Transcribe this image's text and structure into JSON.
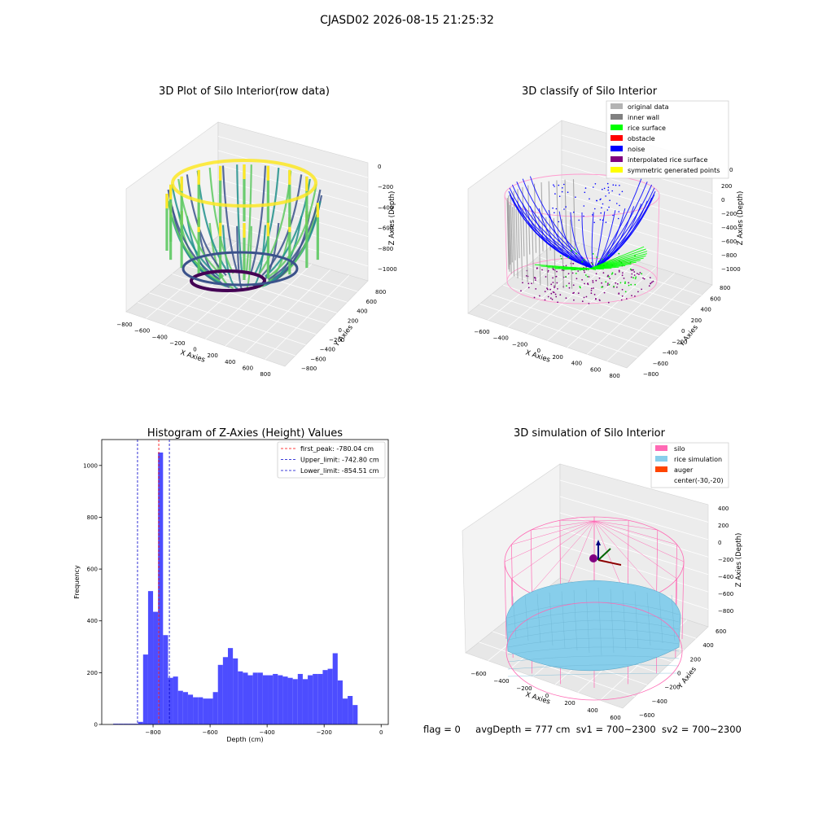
{
  "figure": {
    "title": "CJASD02 2026-08-15 21:25:32",
    "status_line": {
      "flag": "flag = 0",
      "avg_depth": "avgDepth = 777 cm",
      "sv1": "sv1 = 700~2300",
      "sv2": "sv2 = 700~2300"
    }
  },
  "panels": {
    "raw": {
      "title": "3D Plot of Silo Interior(row data)",
      "xlabel": "X Axies",
      "ylabel": "Y Axies",
      "zlabel": "Z Axies (Depth)",
      "xticks": [
        "−800",
        "−600",
        "−400",
        "−200",
        "0",
        "200",
        "400",
        "600",
        "800"
      ],
      "yticks": [
        "−800",
        "−600",
        "−400",
        "−200",
        "0",
        "200",
        "400",
        "600",
        "800"
      ],
      "zticks": [
        "0",
        "−200",
        "−400",
        "−600",
        "−800",
        "−1000"
      ],
      "colormap": [
        "#440154",
        "#3b528b",
        "#21918c",
        "#5ec962",
        "#fde725"
      ]
    },
    "classify": {
      "title": "3D classify of Silo Interior",
      "xlabel": "X Axies",
      "ylabel": "Y Axies",
      "zlabel": "Z Axies (Depth)",
      "xticks": [
        "−600",
        "−400",
        "−200",
        "0",
        "200",
        "400",
        "600",
        "800"
      ],
      "yticks": [
        "−800",
        "−600",
        "−400",
        "−200",
        "0",
        "200",
        "400",
        "600",
        "800"
      ],
      "zticks": [
        "200",
        "0",
        "−200",
        "−400",
        "−600",
        "−800",
        "−1000"
      ],
      "legend": [
        {
          "label": "original data",
          "color": "#b3b3b3"
        },
        {
          "label": "inner wall",
          "color": "#808080"
        },
        {
          "label": "rice surface",
          "color": "#00ff00"
        },
        {
          "label": "obstacle",
          "color": "#ff0000"
        },
        {
          "label": "noise",
          "color": "#0000ff"
        },
        {
          "label": "interpolated rice surface",
          "color": "#800080"
        },
        {
          "label": "symmetric generated points",
          "color": "#ffff00"
        }
      ],
      "partial_tick": "0"
    },
    "simulation": {
      "title": "3D simulation of Silo Interior",
      "xlabel": "X Axies",
      "ylabel": "Y Axies",
      "zlabel": "Z Axies (Depth)",
      "xticks": [
        "−600",
        "−400",
        "−200",
        "0",
        "200",
        "400",
        "600"
      ],
      "yticks": [
        "−600",
        "−400",
        "−200",
        "0",
        "200",
        "400",
        "600"
      ],
      "zticks": [
        "400",
        "200",
        "0",
        "−200",
        "−400",
        "−600",
        "−800"
      ],
      "legend": [
        {
          "label": "silo",
          "color": "#ff69b4"
        },
        {
          "label": "rice simulation",
          "color": "#87ceeb"
        },
        {
          "label": "auger",
          "color": "#ff4500"
        },
        {
          "label": "center(-30,-20)",
          "color": "none"
        }
      ]
    }
  },
  "chart_data": [
    {
      "type": "histogram",
      "title": "Histogram of Z-Axies (Height) Values",
      "xlabel": "Depth (cm)",
      "ylabel": "Frequency",
      "xlim": [
        -980,
        25
      ],
      "ylim": [
        0,
        1100
      ],
      "xticks": [
        -800,
        -600,
        -400,
        -200,
        0
      ],
      "xtick_labels": [
        "−800",
        "−600",
        "−400",
        "−200",
        "0"
      ],
      "yticks": [
        0,
        200,
        400,
        600,
        800,
        1000
      ],
      "bar_color": "#4d4dff",
      "bin_width": 17.5,
      "bin_starts": [
        -940,
        -922.5,
        -905,
        -887.5,
        -870,
        -852.5,
        -835,
        -817.5,
        -800,
        -782.5,
        -765,
        -747.5,
        -730,
        -712.5,
        -695,
        -677.5,
        -660,
        -642.5,
        -625,
        -607.5,
        -590,
        -572.5,
        -555,
        -537.5,
        -520,
        -502.5,
        -485,
        -467.5,
        -450,
        -432.5,
        -415,
        -397.5,
        -380,
        -362.5,
        -345,
        -327.5,
        -310,
        -292.5,
        -275,
        -257.5,
        -240,
        -222.5,
        -205,
        -187.5,
        -170,
        -152.5,
        -135,
        -117.5,
        -100,
        -82.5,
        -65,
        -47.5,
        -30,
        -12.5
      ],
      "counts": [
        3,
        3,
        3,
        3,
        3,
        10,
        270,
        515,
        435,
        1050,
        345,
        180,
        185,
        130,
        125,
        115,
        105,
        105,
        100,
        100,
        125,
        230,
        260,
        295,
        255,
        205,
        200,
        190,
        200,
        200,
        190,
        190,
        195,
        190,
        185,
        180,
        175,
        195,
        175,
        190,
        195,
        195,
        210,
        215,
        275,
        170,
        100,
        110,
        75,
        0,
        0,
        0,
        0,
        0
      ],
      "vlines": [
        {
          "x": -780.04,
          "color": "#ff0000",
          "label": "first_peak: -780.04 cm"
        },
        {
          "x": -742.8,
          "color": "#0000cc",
          "label": "Upper_limit: -742.80 cm"
        },
        {
          "x": -854.51,
          "color": "#0000cc",
          "label": "Lower_limit: -854.51 cm"
        }
      ],
      "legend_position": "upper right"
    }
  ]
}
